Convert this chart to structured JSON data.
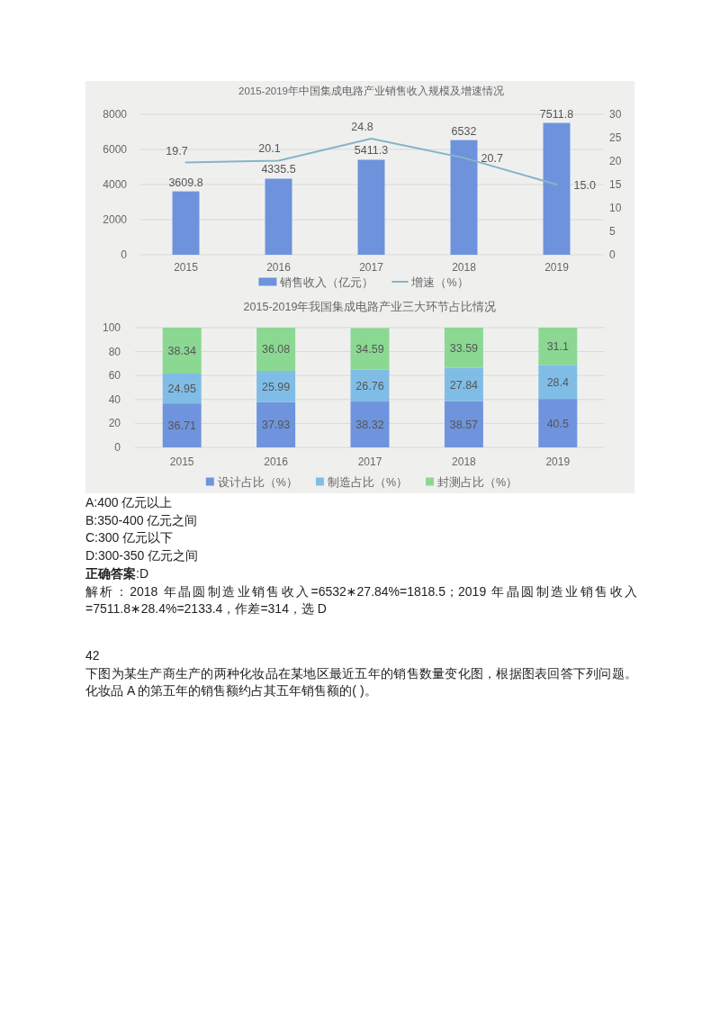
{
  "chart_data": [
    {
      "type": "bar",
      "title": "2015-2019年中国集成电路产业销售收入规模及增速情况",
      "categories": [
        "2015",
        "2016",
        "2017",
        "2018",
        "2019"
      ],
      "series": [
        {
          "name": "销售收入（亿元）",
          "color": "#6e93dc",
          "values": [
            3609.8,
            4335.5,
            5411.3,
            6532,
            7511.8
          ]
        },
        {
          "name": "增速（%）",
          "type": "line",
          "axis": "y2",
          "color": "#86b4c8",
          "values": [
            19.7,
            20.1,
            24.8,
            20.7,
            15.0
          ],
          "value_labels": [
            "19.7",
            "20.1",
            "24.8",
            "20.7",
            "15.0"
          ]
        }
      ],
      "ylim": [
        0,
        8000
      ],
      "yticks": [
        0,
        2000,
        4000,
        6000,
        8000
      ],
      "y2lim": [
        0,
        30
      ],
      "y2ticks": [
        0,
        5,
        10,
        15,
        20,
        25,
        30
      ],
      "grid": "y",
      "legend": "bottom",
      "data_labels": true
    },
    {
      "type": "bar",
      "stacked": true,
      "title": "2015-2019年我国集成电路产业三大环节占比情况",
      "categories": [
        "2015",
        "2016",
        "2017",
        "2018",
        "2019"
      ],
      "series": [
        {
          "name": "设计占比（%）",
          "color": "#6f94dd",
          "values": [
            36.71,
            37.93,
            38.32,
            38.57,
            40.5
          ]
        },
        {
          "name": "制造占比（%）",
          "color": "#80bde6",
          "values": [
            24.95,
            25.99,
            26.76,
            27.84,
            28.4
          ]
        },
        {
          "name": "封测占比（%）",
          "color": "#8bd893",
          "values": [
            38.34,
            36.08,
            34.59,
            33.59,
            31.1
          ]
        }
      ],
      "ylim": [
        0,
        100
      ],
      "yticks": [
        0,
        20,
        40,
        60,
        80,
        100
      ],
      "grid": "y",
      "legend": "bottom",
      "data_labels": true,
      "annotations": [
        "A:400 亿元以上",
        "B:350-400 亿元之间",
        "C:300 亿元以下",
        "D:300-350 亿元之间",
        "**正确答案**:D",
        "解析：2018 年晶圆制造业销售收入=6532∗27.84%=1818.5；2019 年晶圆制造业销售收入=7511.8∗28.4%=2133.4，作差=314，选 D",
        "42",
        "下图为某生产商生产的两种化妆品在某地区最近五年的销售数量变化图，根据图表回答下列问题。化妆品 A 的第五年的销售额约占其五年销售额的( )。"
      ]
    }
  ]
}
